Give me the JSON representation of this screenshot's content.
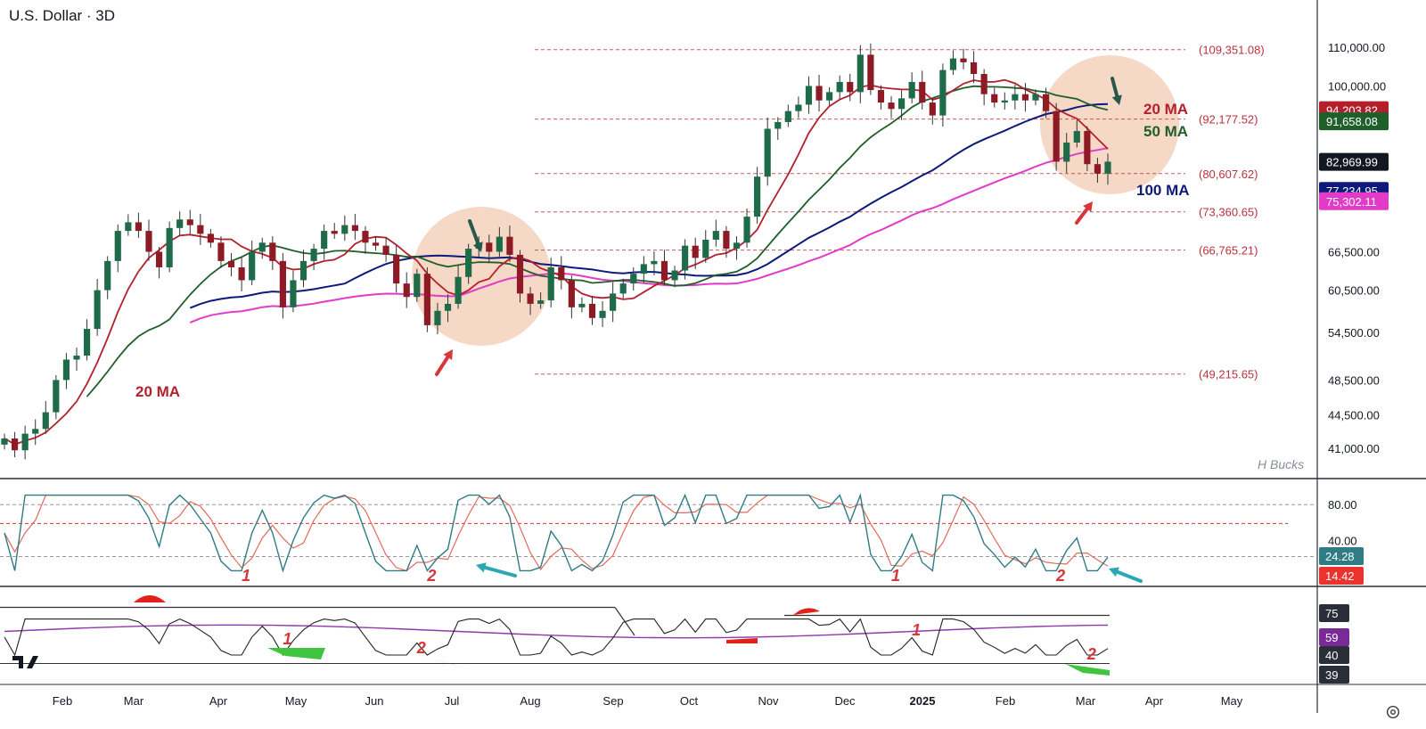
{
  "header": {
    "title": "U.S. Dollar · 3D"
  },
  "watermark": "H Bucks",
  "icons": {
    "logo": "tradingview-logo-icon",
    "settings": "gear-icon"
  },
  "colors": {
    "up": "#1e6b4a",
    "down": "#8e1a25",
    "ma20": "#b3202c",
    "ma50": "#1f5f2a",
    "ma100": "#0d1a7a",
    "ma_magenta": "#e13bc8",
    "level": "#b8323c",
    "circle": "#f3cbb4",
    "rsi": "#2f7c85",
    "rsi_signal": "#e46a5b",
    "annot_red": "#d7363a"
  },
  "chart_data": [
    {
      "type": "candlestick",
      "title": "U.S. Dollar · 3D",
      "xlabel": "",
      "ylabel": "",
      "ylim": [
        38000,
        114000
      ],
      "y_scale": "log",
      "x_ticks": [
        "Feb",
        "Mar",
        "Apr",
        "May",
        "Jun",
        "Jul",
        "Aug",
        "Sep",
        "Oct",
        "Nov",
        "Dec",
        "2025",
        "Feb",
        "Mar",
        "Apr",
        "May"
      ],
      "y_ticks": [
        "110,000.00",
        "100,000.00",
        "66,500.00",
        "60,500.00",
        "54,500.00",
        "48,500.00",
        "44,500.00",
        "41,000.00"
      ],
      "levels": [
        {
          "label": "(109,351.08)",
          "value": 109351.08
        },
        {
          "label": "(92,177.52)",
          "value": 92177.52
        },
        {
          "label": "(80,607.62)",
          "value": 80607.62
        },
        {
          "label": "(73,360.65)",
          "value": 73360.65
        },
        {
          "label": "(66,765.21)",
          "value": 66765.21
        },
        {
          "label": "(49,215.65)",
          "value": 49215.65
        }
      ],
      "price_tags": [
        {
          "label": "94,203.82",
          "value": 94203.82,
          "color": "#b3202c"
        },
        {
          "label": "91,658.08",
          "value": 91658.08,
          "color": "#1f5f2a"
        },
        {
          "label": "82,969.99",
          "value": 82969.99,
          "color": "#131722"
        },
        {
          "label": "77,234.95",
          "value": 77234.95,
          "color": "#0d1a7a"
        },
        {
          "label": "75,302.11",
          "value": 75302.11,
          "color": "#e13bc8"
        }
      ],
      "ma_labels": [
        {
          "text": "20 MA",
          "color": "#b3202c",
          "where": "lower-left"
        },
        {
          "text": "20 MA",
          "color": "#b3202c",
          "where": "right"
        },
        {
          "text": "50 MA",
          "color": "#1f5f2a",
          "where": "right"
        },
        {
          "text": "100 MA",
          "color": "#0d1a7a",
          "where": "right"
        }
      ],
      "close_series": [
        42000,
        40800,
        42500,
        43000,
        44800,
        48500,
        51000,
        51500,
        55000,
        60500,
        65000,
        70000,
        71500,
        70000,
        66500,
        64000,
        70500,
        72000,
        71000,
        69500,
        68000,
        65000,
        64000,
        62000,
        66500,
        68000,
        65000,
        58000,
        62000,
        65000,
        67000,
        70000,
        69500,
        71000,
        70000,
        68000,
        67500,
        66000,
        61500,
        59500,
        63000,
        55500,
        57500,
        58500,
        62500,
        67000,
        68000,
        66500,
        69000,
        66000,
        60000,
        58500,
        59000,
        64000,
        62000,
        58000,
        58500,
        56500,
        57500,
        60000,
        61500,
        63000,
        64500,
        65000,
        62000,
        63500,
        67500,
        65500,
        68500,
        70000,
        67000,
        68000,
        72500,
        80000,
        90000,
        91500,
        94000,
        95500,
        100000,
        96500,
        98500,
        101000,
        98500,
        108000,
        99000,
        96000,
        94500,
        97000,
        101000,
        96000,
        93000,
        104000,
        107000,
        106000,
        103000,
        98000,
        96000,
        96500,
        98000,
        96500,
        98000,
        94000,
        83000,
        87000,
        89500,
        82500,
        80600,
        83000
      ],
      "rsi": {
        "levels": [
          80,
          40
        ],
        "tags": [
          {
            "label": "24.28",
            "value": 24.28,
            "color": "#2f7c85"
          },
          {
            "label": "14.42",
            "value": 14.42,
            "color": "#e8332f"
          }
        ],
        "axis_labels": [
          "80.00",
          "40.00"
        ],
        "annotations": [
          {
            "text": "1",
            "x_bar": 23
          },
          {
            "text": "2",
            "x_bar": 41
          },
          {
            "text": "1",
            "x_bar": 86
          },
          {
            "text": "2",
            "x_bar": 102
          }
        ]
      },
      "oscillator": {
        "tags": [
          {
            "label": "75",
            "color": "#131722"
          },
          {
            "label": "59",
            "color": "#7a2a96"
          },
          {
            "label": "40",
            "color": "#333333"
          },
          {
            "label": "39",
            "color": "#333333"
          }
        ],
        "annotations": [
          {
            "text": "1",
            "x_bar": 27
          },
          {
            "text": "2",
            "x_bar": 40
          },
          {
            "text": "1",
            "x_bar": 88
          },
          {
            "text": "2",
            "x_bar": 105
          }
        ]
      }
    }
  ]
}
